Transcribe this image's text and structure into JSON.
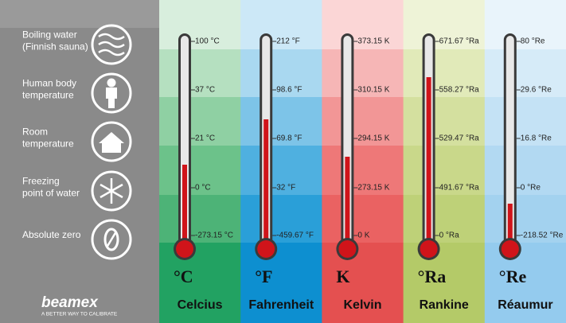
{
  "rows": [
    {
      "lines": [
        "Boiling water",
        "(Finnish sauna)"
      ]
    },
    {
      "lines": [
        "Human body",
        "temperature"
      ]
    },
    {
      "lines": [
        "Room",
        "temperature"
      ]
    },
    {
      "lines": [
        "Freezing",
        "point of water"
      ]
    },
    {
      "lines": [
        "Absolute zero"
      ]
    }
  ],
  "scales": [
    {
      "symbol": "°C",
      "name": "Celcius",
      "values": [
        "100 °C",
        "37 °C",
        "21 °C",
        "0 °C",
        "-273.15 °C"
      ]
    },
    {
      "symbol": "°F",
      "name": "Fahrenheit",
      "values": [
        "212 °F",
        "98.6 °F",
        "69.8 °F",
        "32 °F",
        "-459.67 °F"
      ]
    },
    {
      "symbol": "K",
      "name": "Kelvin",
      "values": [
        "373.15 K",
        "310.15 K",
        "294.15 K",
        "273.15 K",
        "0 K"
      ]
    },
    {
      "symbol": "°Ra",
      "name": "Rankine",
      "values": [
        "671.67 °Ra",
        "558.27 °Ra",
        "529.47 °Ra",
        "491.67 °Ra",
        "0 °Ra"
      ]
    },
    {
      "symbol": "°Re",
      "name": "Réaumur",
      "values": [
        "80 °Re",
        "29.6 °Re",
        "16.8 °Re",
        "0 °Re",
        "-218.52 °Re"
      ]
    }
  ],
  "logo": {
    "brand": "beamex",
    "tagline": "A BETTER WAY TO CALIBRATE"
  }
}
